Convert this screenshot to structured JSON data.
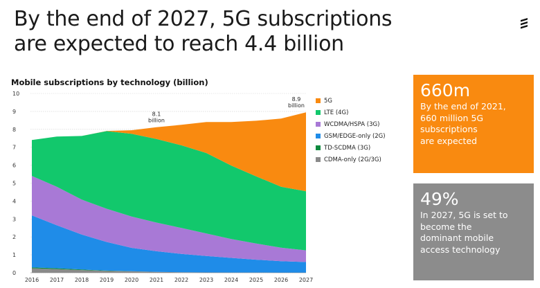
{
  "headline": {
    "line1": "By the end of 2027, 5G subscriptions",
    "line2": "are expected to reach 4.4 billion"
  },
  "logo_icon": "ericsson-logo-icon",
  "colors": {
    "5g": "#f98a10",
    "lte": "#12c86c",
    "wcdma": "#a879d6",
    "gsm": "#1f8ce8",
    "tdscdma": "#0e8a3e",
    "cdma": "#8a8a8a",
    "callout1_bg": "#f98a10",
    "callout2_bg": "#8c8c8c"
  },
  "chart_data": {
    "type": "area",
    "title": "Mobile subscriptions by technology (billion)",
    "xlabel": "",
    "ylabel": "",
    "x": [
      2016,
      2017,
      2018,
      2019,
      2020,
      2021,
      2022,
      2023,
      2024,
      2025,
      2026,
      2027
    ],
    "ylim": [
      0,
      10
    ],
    "yticks": [
      "0",
      "1",
      "2",
      "3",
      "4",
      "5",
      "6",
      "7",
      "8",
      "9",
      "10"
    ],
    "xticks": [
      "2016",
      "2017",
      "2018",
      "2019",
      "2020",
      "2021",
      "2022",
      "2023",
      "2024",
      "2025",
      "2026",
      "2027"
    ],
    "grid": true,
    "stacked": true,
    "series": [
      {
        "key": "cdma",
        "name": "CDMA-only (2G/3G)",
        "values": [
          0.25,
          0.2,
          0.15,
          0.1,
          0.08,
          0.05,
          0.03,
          0.02,
          0.01,
          0.01,
          0.0,
          0.0
        ]
      },
      {
        "key": "tdscdma",
        "name": "TD-SCDMA (3G)",
        "values": [
          0.05,
          0.05,
          0.03,
          0.02,
          0.01,
          0.0,
          0.0,
          0.0,
          0.0,
          0.0,
          0.0,
          0.0
        ]
      },
      {
        "key": "gsm",
        "name": "GSM/EDGE-only (2G)",
        "values": [
          2.9,
          2.4,
          1.95,
          1.6,
          1.3,
          1.15,
          1.02,
          0.92,
          0.82,
          0.72,
          0.65,
          0.6
        ]
      },
      {
        "key": "wcdma",
        "name": "WCDMA/HSPA (3G)",
        "values": [
          2.2,
          2.15,
          1.95,
          1.85,
          1.75,
          1.6,
          1.45,
          1.25,
          1.05,
          0.9,
          0.75,
          0.65
        ]
      },
      {
        "key": "lte",
        "name": "LTE (4G)",
        "values": [
          2.0,
          2.8,
          3.55,
          4.33,
          4.61,
          4.66,
          4.61,
          4.49,
          4.1,
          3.75,
          3.4,
          3.3
        ]
      },
      {
        "key": "5g",
        "name": "5G",
        "values": [
          0.0,
          0.0,
          0.0,
          0.01,
          0.2,
          0.66,
          1.14,
          1.73,
          2.43,
          3.1,
          3.8,
          4.4
        ]
      }
    ],
    "annotations": [
      {
        "year": 2021,
        "line1": "8.1",
        "line2": "billion"
      },
      {
        "year": 2027,
        "line1": "8.9",
        "line2": "billion"
      }
    ],
    "legend_placement": "right",
    "legend_order": [
      "5g",
      "lte",
      "wcdma",
      "gsm",
      "tdscdma",
      "cdma"
    ]
  },
  "callouts": [
    {
      "big": "660m",
      "lines": [
        "By the end of 2021,",
        "660 million 5G",
        "subscriptions",
        "are expected"
      ]
    },
    {
      "big": "49%",
      "lines": [
        "In 2027, 5G is set to",
        "become the",
        "dominant mobile",
        "access technology"
      ]
    }
  ]
}
